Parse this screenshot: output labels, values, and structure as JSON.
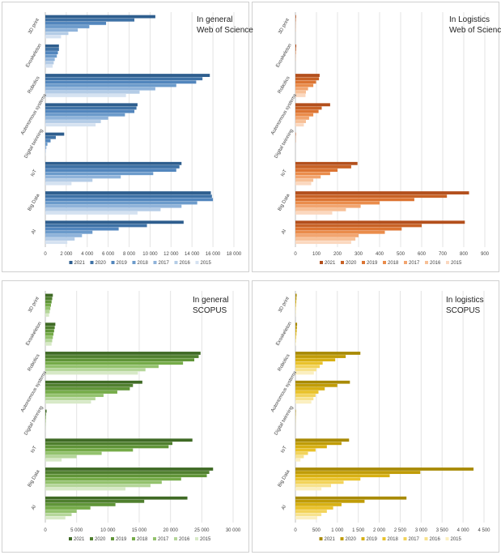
{
  "chart_data": [
    {
      "type": "bar",
      "orientation": "horizontal",
      "title": "In general",
      "subtitle": "Web of Science",
      "categories": [
        "3D print",
        "Exoskeleton",
        "Robotics",
        "Autonomous systems",
        "Digital twinning",
        "IoT",
        "Big Data",
        "AI"
      ],
      "xlim": [
        0,
        18000
      ],
      "xticks": [
        0,
        2000,
        4000,
        6000,
        8000,
        10000,
        12000,
        14000,
        16000,
        18000
      ],
      "xtick_labels": [
        "0",
        "2 000",
        "4 000",
        "6 000",
        "8 000",
        "10 000",
        "12 000",
        "14 000",
        "16 000",
        "18 000"
      ],
      "series": [
        {
          "name": "2021",
          "color": "#2e5e8e",
          "values": [
            10500,
            1300,
            15700,
            8800,
            1800,
            13000,
            15800,
            13200
          ]
        },
        {
          "name": "2020",
          "color": "#3f72a6",
          "values": [
            8500,
            1300,
            15000,
            8700,
            1000,
            12800,
            15900,
            9700
          ]
        },
        {
          "name": "2019",
          "color": "#5286bd",
          "values": [
            5800,
            1200,
            14400,
            8500,
            500,
            12500,
            16000,
            7000
          ]
        },
        {
          "name": "2018",
          "color": "#6c9bcb",
          "values": [
            4200,
            1100,
            12500,
            7600,
            200,
            10300,
            14500,
            4500
          ]
        },
        {
          "name": "2017",
          "color": "#8fb3da",
          "values": [
            3100,
            900,
            10500,
            6000,
            100,
            7200,
            13000,
            3500
          ]
        },
        {
          "name": "2016",
          "color": "#b4cce6",
          "values": [
            2200,
            800,
            9000,
            5300,
            50,
            4500,
            11000,
            2800
          ]
        },
        {
          "name": "2015",
          "color": "#d5e2f1",
          "values": [
            1500,
            700,
            7700,
            4800,
            20,
            2500,
            8800,
            2100
          ]
        }
      ]
    },
    {
      "type": "bar",
      "orientation": "horizontal",
      "title": "In Logistics",
      "subtitle": "Web of Science",
      "categories": [
        "3D print",
        "Exoskeleton",
        "Robotics",
        "Autonomous systems",
        "Digital twinning",
        "IoT",
        "Big Data",
        "AI"
      ],
      "xlim": [
        0,
        900
      ],
      "xticks": [
        0,
        100,
        200,
        300,
        400,
        500,
        600,
        700,
        800,
        900
      ],
      "xtick_labels": [
        "0",
        "100",
        "200",
        "300",
        "400",
        "500",
        "600",
        "700",
        "800",
        "900"
      ],
      "series": [
        {
          "name": "2021",
          "color": "#b34f1c",
          "values": [
            3,
            4,
            115,
            165,
            2,
            295,
            825,
            805
          ]
        },
        {
          "name": "2020",
          "color": "#c86226",
          "values": [
            2,
            3,
            112,
            125,
            1,
            265,
            720,
            600
          ]
        },
        {
          "name": "2019",
          "color": "#dc7432",
          "values": [
            1,
            2,
            98,
            110,
            1,
            200,
            565,
            505
          ]
        },
        {
          "name": "2018",
          "color": "#ea8c4b",
          "values": [
            1,
            1,
            85,
            85,
            0,
            165,
            400,
            425
          ]
        },
        {
          "name": "2017",
          "color": "#f2a570",
          "values": [
            1,
            1,
            60,
            65,
            0,
            120,
            310,
            300
          ]
        },
        {
          "name": "2016",
          "color": "#f7c097",
          "values": [
            0,
            0,
            50,
            50,
            0,
            85,
            240,
            285
          ]
        },
        {
          "name": "2015",
          "color": "#fbd8bf",
          "values": [
            0,
            0,
            48,
            40,
            0,
            75,
            175,
            265
          ]
        }
      ]
    },
    {
      "type": "bar",
      "orientation": "horizontal",
      "title": "In general",
      "subtitle": "SCOPUS",
      "categories": [
        "3D print",
        "Exoskeleton",
        "Robotics",
        "Autonomous systems",
        "Digital twinning",
        "IoT",
        "Big Data",
        "AI"
      ],
      "xlim": [
        0,
        30000
      ],
      "xticks": [
        0,
        5000,
        10000,
        15000,
        20000,
        25000,
        30000
      ],
      "xtick_labels": [
        "0",
        "5 000",
        "10 000",
        "15 000",
        "20 000",
        "25 000",
        "30 000"
      ],
      "series": [
        {
          "name": "2021",
          "color": "#3f6a25",
          "values": [
            1200,
            1600,
            24800,
            15500,
            200,
            23500,
            26800,
            22700
          ]
        },
        {
          "name": "2020",
          "color": "#4f7f2e",
          "values": [
            1100,
            1500,
            24500,
            14000,
            100,
            20300,
            26200,
            15800
          ]
        },
        {
          "name": "2019",
          "color": "#609538",
          "values": [
            1000,
            1400,
            23800,
            13500,
            80,
            19700,
            25800,
            11200
          ]
        },
        {
          "name": "2018",
          "color": "#75ab48",
          "values": [
            900,
            1300,
            22000,
            11500,
            50,
            14000,
            21700,
            7200
          ]
        },
        {
          "name": "2017",
          "color": "#93c26d",
          "values": [
            800,
            1200,
            18100,
            9300,
            30,
            9000,
            18600,
            5000
          ]
        },
        {
          "name": "2016",
          "color": "#b5d69a",
          "values": [
            700,
            1100,
            16000,
            8000,
            20,
            5000,
            16800,
            4200
          ]
        },
        {
          "name": "2015",
          "color": "#d7e9c7",
          "values": [
            600,
            1000,
            14800,
            7300,
            10,
            2600,
            12800,
            3200
          ]
        }
      ]
    },
    {
      "type": "bar",
      "orientation": "horizontal",
      "title": "In logistics",
      "subtitle": "SCOPUS",
      "categories": [
        "3D print",
        "Exoskeleton",
        "Robotics",
        "Autonomous systems",
        "Digital twinning",
        "IoT",
        "Big Data",
        "AI"
      ],
      "xlim": [
        0,
        4500
      ],
      "xticks": [
        0,
        500,
        1000,
        1500,
        2000,
        2500,
        3000,
        3500,
        4000,
        4500
      ],
      "xtick_labels": [
        "0",
        "500",
        "1 000",
        "1 500",
        "2 000",
        "2 500",
        "3 000",
        "3 500",
        "4 000",
        "4 500"
      ],
      "series": [
        {
          "name": "2021",
          "color": "#a88a04",
          "values": [
            30,
            40,
            1550,
            1300,
            10,
            1280,
            4250,
            2650
          ]
        },
        {
          "name": "2020",
          "color": "#c09c07",
          "values": [
            25,
            35,
            1200,
            1000,
            8,
            1100,
            2980,
            1650
          ]
        },
        {
          "name": "2019",
          "color": "#d7b013",
          "values": [
            20,
            30,
            950,
            700,
            5,
            750,
            2250,
            1100
          ]
        },
        {
          "name": "2018",
          "color": "#e9c22a",
          "values": [
            15,
            25,
            650,
            550,
            3,
            480,
            1550,
            900
          ]
        },
        {
          "name": "2017",
          "color": "#f2d35a",
          "values": [
            10,
            20,
            580,
            480,
            2,
            300,
            1150,
            750
          ]
        },
        {
          "name": "2016",
          "color": "#f7e28e",
          "values": [
            8,
            15,
            500,
            430,
            1,
            200,
            850,
            620
          ]
        },
        {
          "name": "2015",
          "color": "#fbefc0",
          "values": [
            5,
            10,
            440,
            380,
            1,
            120,
            620,
            520
          ]
        }
      ]
    }
  ]
}
